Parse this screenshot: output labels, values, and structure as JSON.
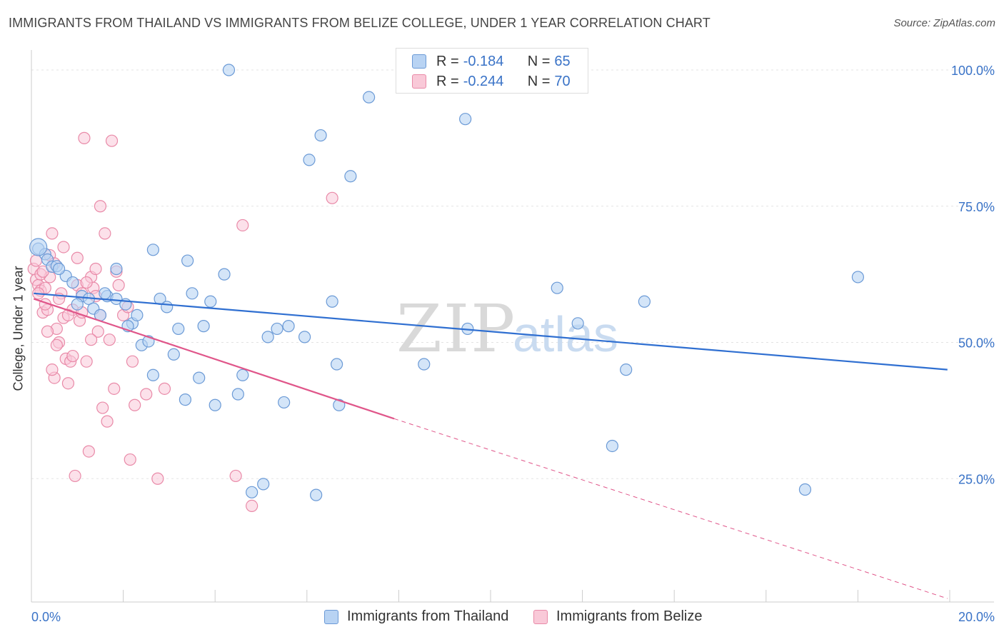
{
  "title": "IMMIGRANTS FROM THAILAND VS IMMIGRANTS FROM BELIZE COLLEGE, UNDER 1 YEAR CORRELATION CHART",
  "source": "Source: ZipAtlas.com",
  "watermark": {
    "zip": "ZIP",
    "atlas": "atlas"
  },
  "legend": {
    "rows": [
      {
        "r_label": "R =",
        "r_value": "-0.184",
        "n_label": "N =",
        "n_value": "65",
        "color": "#a8c8f0"
      },
      {
        "r_label": "R =",
        "r_value": "-0.244",
        "n_label": "N =",
        "n_value": "70",
        "color": "#f8bcd0"
      }
    ]
  },
  "bottom_legend": {
    "series1": "Immigrants from Thailand",
    "series2": "Immigrants from Belize"
  },
  "chart_data": {
    "type": "scatter",
    "ylabel": "College, Under 1 year",
    "xlim": [
      0,
      20
    ],
    "ylim": [
      0,
      105
    ],
    "x_tick_labels": {
      "left": "0.0%",
      "right": "20.0%"
    },
    "y_tick_labels": [
      "100.0%",
      "75.0%",
      "50.0%",
      "25.0%"
    ],
    "y_ticks": [
      100,
      75,
      50,
      25
    ],
    "grid": true,
    "colors": {
      "thailand_fill": "#b8d3f3",
      "thailand_stroke": "#6b9ad6",
      "thailand_line": "#2f6fd1",
      "belize_fill": "#f9c9d8",
      "belize_stroke": "#e98aa8",
      "belize_line": "#e0568a",
      "axis_label": "#3a73c7"
    },
    "series": [
      {
        "name": "Immigrants from Thailand",
        "trend": {
          "x": [
            0.05,
            19.95
          ],
          "y": [
            59.0,
            45.0
          ]
        },
        "points": [
          [
            0.15,
            67.2
          ],
          [
            0.3,
            66.2
          ],
          [
            0.35,
            65.2
          ],
          [
            0.45,
            63.9
          ],
          [
            0.55,
            64.0
          ],
          [
            0.75,
            62.2
          ],
          [
            0.9,
            61.0
          ],
          [
            1.1,
            58.5
          ],
          [
            1.25,
            58.0
          ],
          [
            1.35,
            56.2
          ],
          [
            1.5,
            55.0
          ],
          [
            1.65,
            58.5
          ],
          [
            1.85,
            58.0
          ],
          [
            1.85,
            63.5
          ],
          [
            2.05,
            57.0
          ],
          [
            2.2,
            53.5
          ],
          [
            2.3,
            55.0
          ],
          [
            2.4,
            49.5
          ],
          [
            2.55,
            50.2
          ],
          [
            2.65,
            44.0
          ],
          [
            2.65,
            67.0
          ],
          [
            2.8,
            58.0
          ],
          [
            2.95,
            56.5
          ],
          [
            3.1,
            47.8
          ],
          [
            3.2,
            52.5
          ],
          [
            3.35,
            39.5
          ],
          [
            3.4,
            65.0
          ],
          [
            3.5,
            59.0
          ],
          [
            3.65,
            43.5
          ],
          [
            3.75,
            53.0
          ],
          [
            3.9,
            57.5
          ],
          [
            4.0,
            38.5
          ],
          [
            4.2,
            62.5
          ],
          [
            4.3,
            100.0
          ],
          [
            4.5,
            40.5
          ],
          [
            4.6,
            44.0
          ],
          [
            4.8,
            22.5
          ],
          [
            5.05,
            24.0
          ],
          [
            5.15,
            51.0
          ],
          [
            5.35,
            52.5
          ],
          [
            5.5,
            39.0
          ],
          [
            5.6,
            53.0
          ],
          [
            5.95,
            51.0
          ],
          [
            6.05,
            83.5
          ],
          [
            6.2,
            22.0
          ],
          [
            6.3,
            88.0
          ],
          [
            6.55,
            57.5
          ],
          [
            6.65,
            46.0
          ],
          [
            6.7,
            38.5
          ],
          [
            6.95,
            80.5
          ],
          [
            7.35,
            95.0
          ],
          [
            8.55,
            46.0
          ],
          [
            9.45,
            91.0
          ],
          [
            9.5,
            52.5
          ],
          [
            11.45,
            60.0
          ],
          [
            11.9,
            53.5
          ],
          [
            12.65,
            31.0
          ],
          [
            12.95,
            45.0
          ],
          [
            13.35,
            57.5
          ],
          [
            16.85,
            23.0
          ],
          [
            18.0,
            62.0
          ],
          [
            0.6,
            63.5
          ],
          [
            1.0,
            57.0
          ],
          [
            1.6,
            59.0
          ],
          [
            2.1,
            53.0
          ]
        ]
      },
      {
        "name": "Immigrants from Belize",
        "trend": {
          "x": [
            0.05,
            7.9
          ],
          "y": [
            58.0,
            36.0
          ]
        },
        "trend_dashed": {
          "x": [
            7.9,
            19.95
          ],
          "y": [
            36.0,
            3.0
          ]
        },
        "points": [
          [
            0.05,
            63.5
          ],
          [
            0.1,
            61.5
          ],
          [
            0.15,
            60.5
          ],
          [
            0.2,
            59.5
          ],
          [
            0.25,
            55.5
          ],
          [
            0.3,
            60.0
          ],
          [
            0.35,
            56.0
          ],
          [
            0.4,
            62.0
          ],
          [
            0.45,
            70.0
          ],
          [
            0.5,
            43.5
          ],
          [
            0.55,
            52.5
          ],
          [
            0.6,
            50.0
          ],
          [
            0.65,
            59.0
          ],
          [
            0.7,
            54.5
          ],
          [
            0.75,
            47.0
          ],
          [
            0.8,
            42.5
          ],
          [
            0.85,
            46.5
          ],
          [
            0.9,
            56.0
          ],
          [
            0.95,
            25.5
          ],
          [
            1.0,
            60.5
          ],
          [
            1.05,
            54.0
          ],
          [
            1.1,
            59.0
          ],
          [
            1.15,
            87.5
          ],
          [
            1.2,
            46.5
          ],
          [
            1.25,
            30.0
          ],
          [
            1.3,
            62.0
          ],
          [
            1.35,
            60.0
          ],
          [
            1.4,
            58.5
          ],
          [
            1.45,
            52.0
          ],
          [
            1.5,
            75.0
          ],
          [
            1.55,
            38.0
          ],
          [
            1.6,
            70.0
          ],
          [
            1.65,
            35.5
          ],
          [
            1.7,
            50.5
          ],
          [
            1.75,
            87.0
          ],
          [
            1.8,
            41.5
          ],
          [
            1.85,
            63.0
          ],
          [
            1.9,
            60.5
          ],
          [
            2.0,
            55.0
          ],
          [
            2.1,
            56.5
          ],
          [
            2.15,
            28.5
          ],
          [
            2.2,
            46.5
          ],
          [
            2.25,
            38.5
          ],
          [
            2.5,
            40.5
          ],
          [
            2.75,
            25.0
          ],
          [
            2.9,
            41.5
          ],
          [
            4.45,
            25.5
          ],
          [
            4.6,
            71.5
          ],
          [
            4.8,
            20.0
          ],
          [
            6.55,
            76.5
          ],
          [
            0.1,
            65.0
          ],
          [
            0.2,
            62.5
          ],
          [
            0.3,
            57.0
          ],
          [
            0.4,
            66.0
          ],
          [
            0.5,
            64.5
          ],
          [
            0.6,
            58.0
          ],
          [
            0.7,
            67.5
          ],
          [
            0.8,
            55.0
          ],
          [
            0.9,
            47.5
          ],
          [
            1.0,
            65.5
          ],
          [
            1.1,
            55.5
          ],
          [
            1.2,
            61.0
          ],
          [
            1.3,
            50.5
          ],
          [
            1.4,
            63.5
          ],
          [
            1.5,
            55.0
          ],
          [
            0.15,
            59.0
          ],
          [
            0.25,
            63.0
          ],
          [
            0.35,
            52.0
          ],
          [
            0.45,
            45.0
          ],
          [
            0.55,
            49.5
          ]
        ]
      }
    ]
  }
}
